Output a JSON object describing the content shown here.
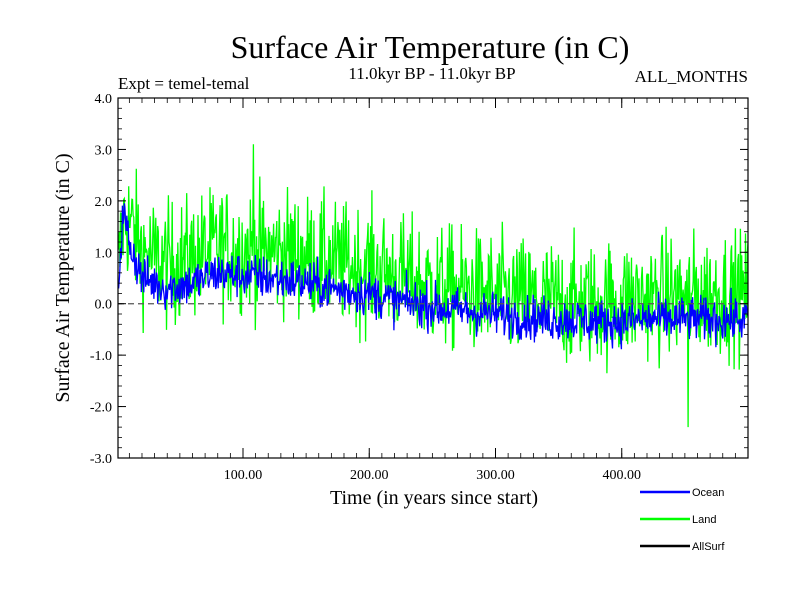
{
  "chart_data": {
    "type": "line",
    "title": "Surface Air Temperature (in C)",
    "subtitle_left": "Expt = temel-temal",
    "subtitle_center": "11.0kyr BP - 11.0kyr BP",
    "subtitle_right": "ALL_MONTHS",
    "xlabel": "Time (in years since start)",
    "ylabel": "Surface Air Temperature (in C)",
    "xlim": [
      1,
      500
    ],
    "ylim": [
      -3.0,
      4.0
    ],
    "x_ticks": [
      100,
      200,
      300,
      400
    ],
    "x_tick_labels": [
      "100.00",
      "200.00",
      "300.00",
      "400.00"
    ],
    "y_ticks": [
      -3.0,
      -2.0,
      -1.0,
      0.0,
      1.0,
      2.0,
      3.0,
      4.0
    ],
    "y_tick_labels": [
      "-3.0",
      "-2.0",
      "-1.0",
      "0.0",
      "1.0",
      "2.0",
      "3.0",
      "4.0"
    ],
    "reference_line": {
      "y": 0.0,
      "style": "dashed",
      "color": "#555555"
    },
    "series": [
      {
        "name": "Land",
        "color": "#00ff00",
        "trend_x": [
          1,
          5,
          10,
          20,
          40,
          60,
          80,
          100,
          120,
          140,
          160,
          180,
          200,
          220,
          240,
          260,
          280,
          300,
          320,
          340,
          360,
          380,
          400,
          420,
          440,
          460,
          480,
          500
        ],
        "trend_mean": [
          0.5,
          1.6,
          1.6,
          1.0,
          0.75,
          0.9,
          1.1,
          1.05,
          1.0,
          1.0,
          0.85,
          0.75,
          0.7,
          0.55,
          0.4,
          0.3,
          0.25,
          0.15,
          0.1,
          0.05,
          0.0,
          0.0,
          0.05,
          0.1,
          0.15,
          0.15,
          0.2,
          0.2
        ],
        "noise_amplitude": 0.6,
        "max_value": 3.1,
        "min_value": -2.4
      },
      {
        "name": "Ocean",
        "color": "#0000ff",
        "trend_x": [
          1,
          5,
          10,
          20,
          40,
          60,
          80,
          100,
          120,
          140,
          160,
          180,
          200,
          220,
          240,
          260,
          280,
          300,
          320,
          340,
          360,
          380,
          400,
          420,
          440,
          460,
          480,
          500
        ],
        "trend_mean": [
          0.3,
          1.8,
          1.2,
          0.5,
          0.3,
          0.4,
          0.6,
          0.55,
          0.5,
          0.45,
          0.35,
          0.25,
          0.2,
          0.05,
          0.0,
          -0.1,
          -0.15,
          -0.2,
          -0.25,
          -0.3,
          -0.3,
          -0.35,
          -0.35,
          -0.3,
          -0.3,
          -0.3,
          -0.3,
          -0.3
        ],
        "noise_amplitude": 0.22
      },
      {
        "name": "AllSurf",
        "color": "#000000",
        "values": []
      }
    ],
    "legend": {
      "placement": "bottom-right",
      "entries": [
        {
          "label": "Ocean",
          "color": "#0000ff"
        },
        {
          "label": "Land",
          "color": "#00ff00"
        },
        {
          "label": "AllSurf",
          "color": "#000000"
        }
      ]
    }
  }
}
